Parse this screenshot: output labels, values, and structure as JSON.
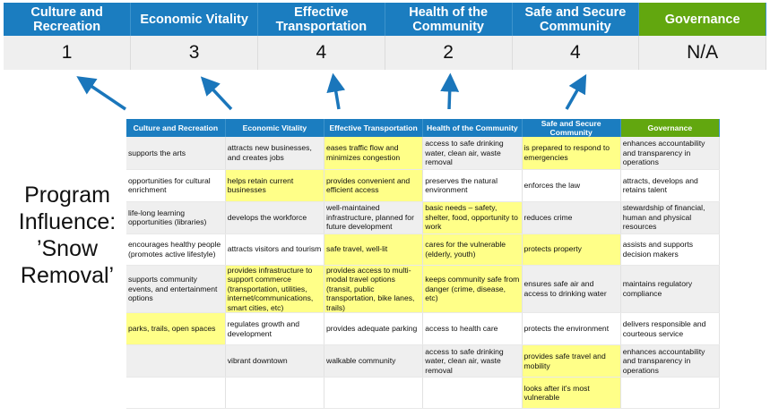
{
  "summary": {
    "headers": [
      "Culture and Recreation",
      "Economic Vitality",
      "Effective Transportation",
      "Health of the Community",
      "Safe and Secure Community",
      "Governance"
    ],
    "scores": [
      "1",
      "3",
      "4",
      "2",
      "4",
      "N/A"
    ]
  },
  "program_label": [
    "Program",
    "Influence:",
    "’Snow",
    "Removal’"
  ],
  "colors": {
    "header_blue": "#1b7dc0",
    "governance_green": "#62a70f",
    "highlight_yellow": "#ffff88",
    "arrow_blue": "#1a76bb"
  },
  "matrix": {
    "headers": [
      "Culture and Recreation",
      "Economic Vitality",
      "Effective Transportation",
      "Health of the Community",
      "Safe and Secure Community",
      "Governance"
    ],
    "rows": [
      {
        "cells": [
          "supports the arts",
          "attracts new businesses, and creates jobs",
          "eases traffic flow and minimizes congestion",
          "access to safe drinking water, clean air, waste removal",
          "is prepared to respond to emergencies",
          "enhances accountability and transparency in operations"
        ],
        "highlighted": [
          false,
          false,
          true,
          false,
          true,
          false
        ]
      },
      {
        "cells": [
          "opportunities for cultural enrichment",
          "helps retain current businesses",
          "provides convenient and efficient access",
          "preserves the natural environment",
          "enforces the law",
          "attracts, develops and retains talent"
        ],
        "highlighted": [
          false,
          true,
          true,
          false,
          false,
          false
        ]
      },
      {
        "cells": [
          "life-long learning opportunities (libraries)",
          "develops the workforce",
          "well-maintained infrastructure, planned for future development",
          "basic needs – safety, shelter, food, opportunity to work",
          "reduces crime",
          "stewardship of financial, human and physical resources"
        ],
        "highlighted": [
          false,
          false,
          false,
          true,
          false,
          false
        ]
      },
      {
        "cells": [
          "encourages healthy people (promotes active lifestyle)",
          "attracts visitors and tourism",
          "safe travel, well-lit",
          "cares for the vulnerable (elderly, youth)",
          "protects property",
          "assists and supports decision makers"
        ],
        "highlighted": [
          false,
          false,
          true,
          true,
          true,
          false
        ]
      },
      {
        "cells": [
          "supports community events, and entertainment options",
          "provides infrastructure to support commerce (transportation, utilities, internet/communications, smart cities, etc)",
          "provides access to multi-modal travel options (transit, public transportation, bike lanes, trails)",
          "keeps community safe from danger (crime, disease, etc)",
          "ensures safe air and access to drinking water",
          "maintains regulatory compliance"
        ],
        "highlighted": [
          false,
          true,
          true,
          true,
          false,
          false
        ]
      },
      {
        "cells": [
          "parks, trails, open spaces",
          "regulates growth and development",
          "provides adequate parking",
          "access to health care",
          "protects the environment",
          "delivers responsible and courteous service"
        ],
        "highlighted": [
          true,
          false,
          false,
          false,
          false,
          false
        ]
      },
      {
        "cells": [
          "",
          "vibrant downtown",
          "walkable community",
          "access to safe drinking water, clean air, waste removal",
          "provides safe travel and mobility",
          "enhances accountability and transparency in operations"
        ],
        "highlighted": [
          false,
          false,
          false,
          false,
          true,
          false
        ]
      },
      {
        "cells": [
          "",
          "",
          "",
          "",
          "looks after it's most vulnerable",
          ""
        ],
        "highlighted": [
          false,
          false,
          false,
          false,
          true,
          false
        ]
      }
    ]
  }
}
